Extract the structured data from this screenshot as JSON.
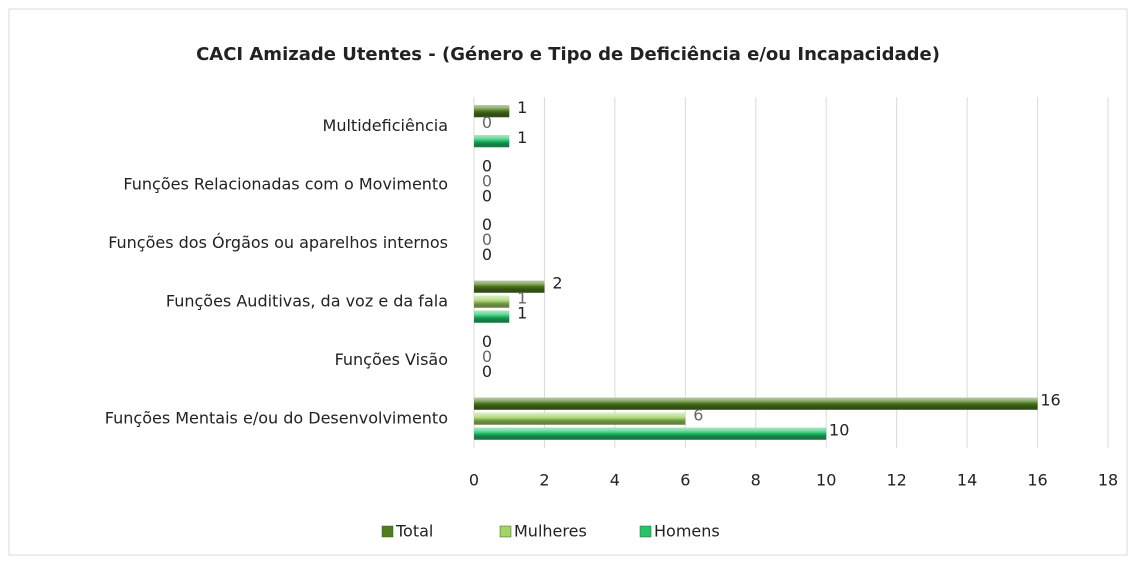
{
  "chart_data": {
    "type": "hbar",
    "title": "CACI Amizade Utentes - (Género e Tipo de Deficiência e/ou Incapacidade)",
    "categories": [
      "Multideficiência",
      "Funções Relacionadas com o Movimento",
      "Funções dos Órgãos ou aparelhos internos",
      "Funções Auditivas, da voz e da fala",
      "Funções Visão",
      "Funções Mentais e/ou do Desenvolvimento"
    ],
    "series": [
      {
        "name": "Total",
        "color": "#4f7d1f",
        "values": [
          1,
          0,
          0,
          2,
          0,
          16
        ]
      },
      {
        "name": "Mulheres",
        "color": "#a3d468",
        "values": [
          0,
          0,
          0,
          1,
          0,
          6
        ]
      },
      {
        "name": "Homens",
        "color": "#25c46c",
        "values": [
          1,
          0,
          0,
          1,
          0,
          10
        ]
      }
    ],
    "xlim": [
      0,
      18
    ],
    "xticks": [
      0,
      2,
      4,
      6,
      8,
      10,
      12,
      14,
      16,
      18
    ],
    "grid": true,
    "legend": "bottom"
  }
}
